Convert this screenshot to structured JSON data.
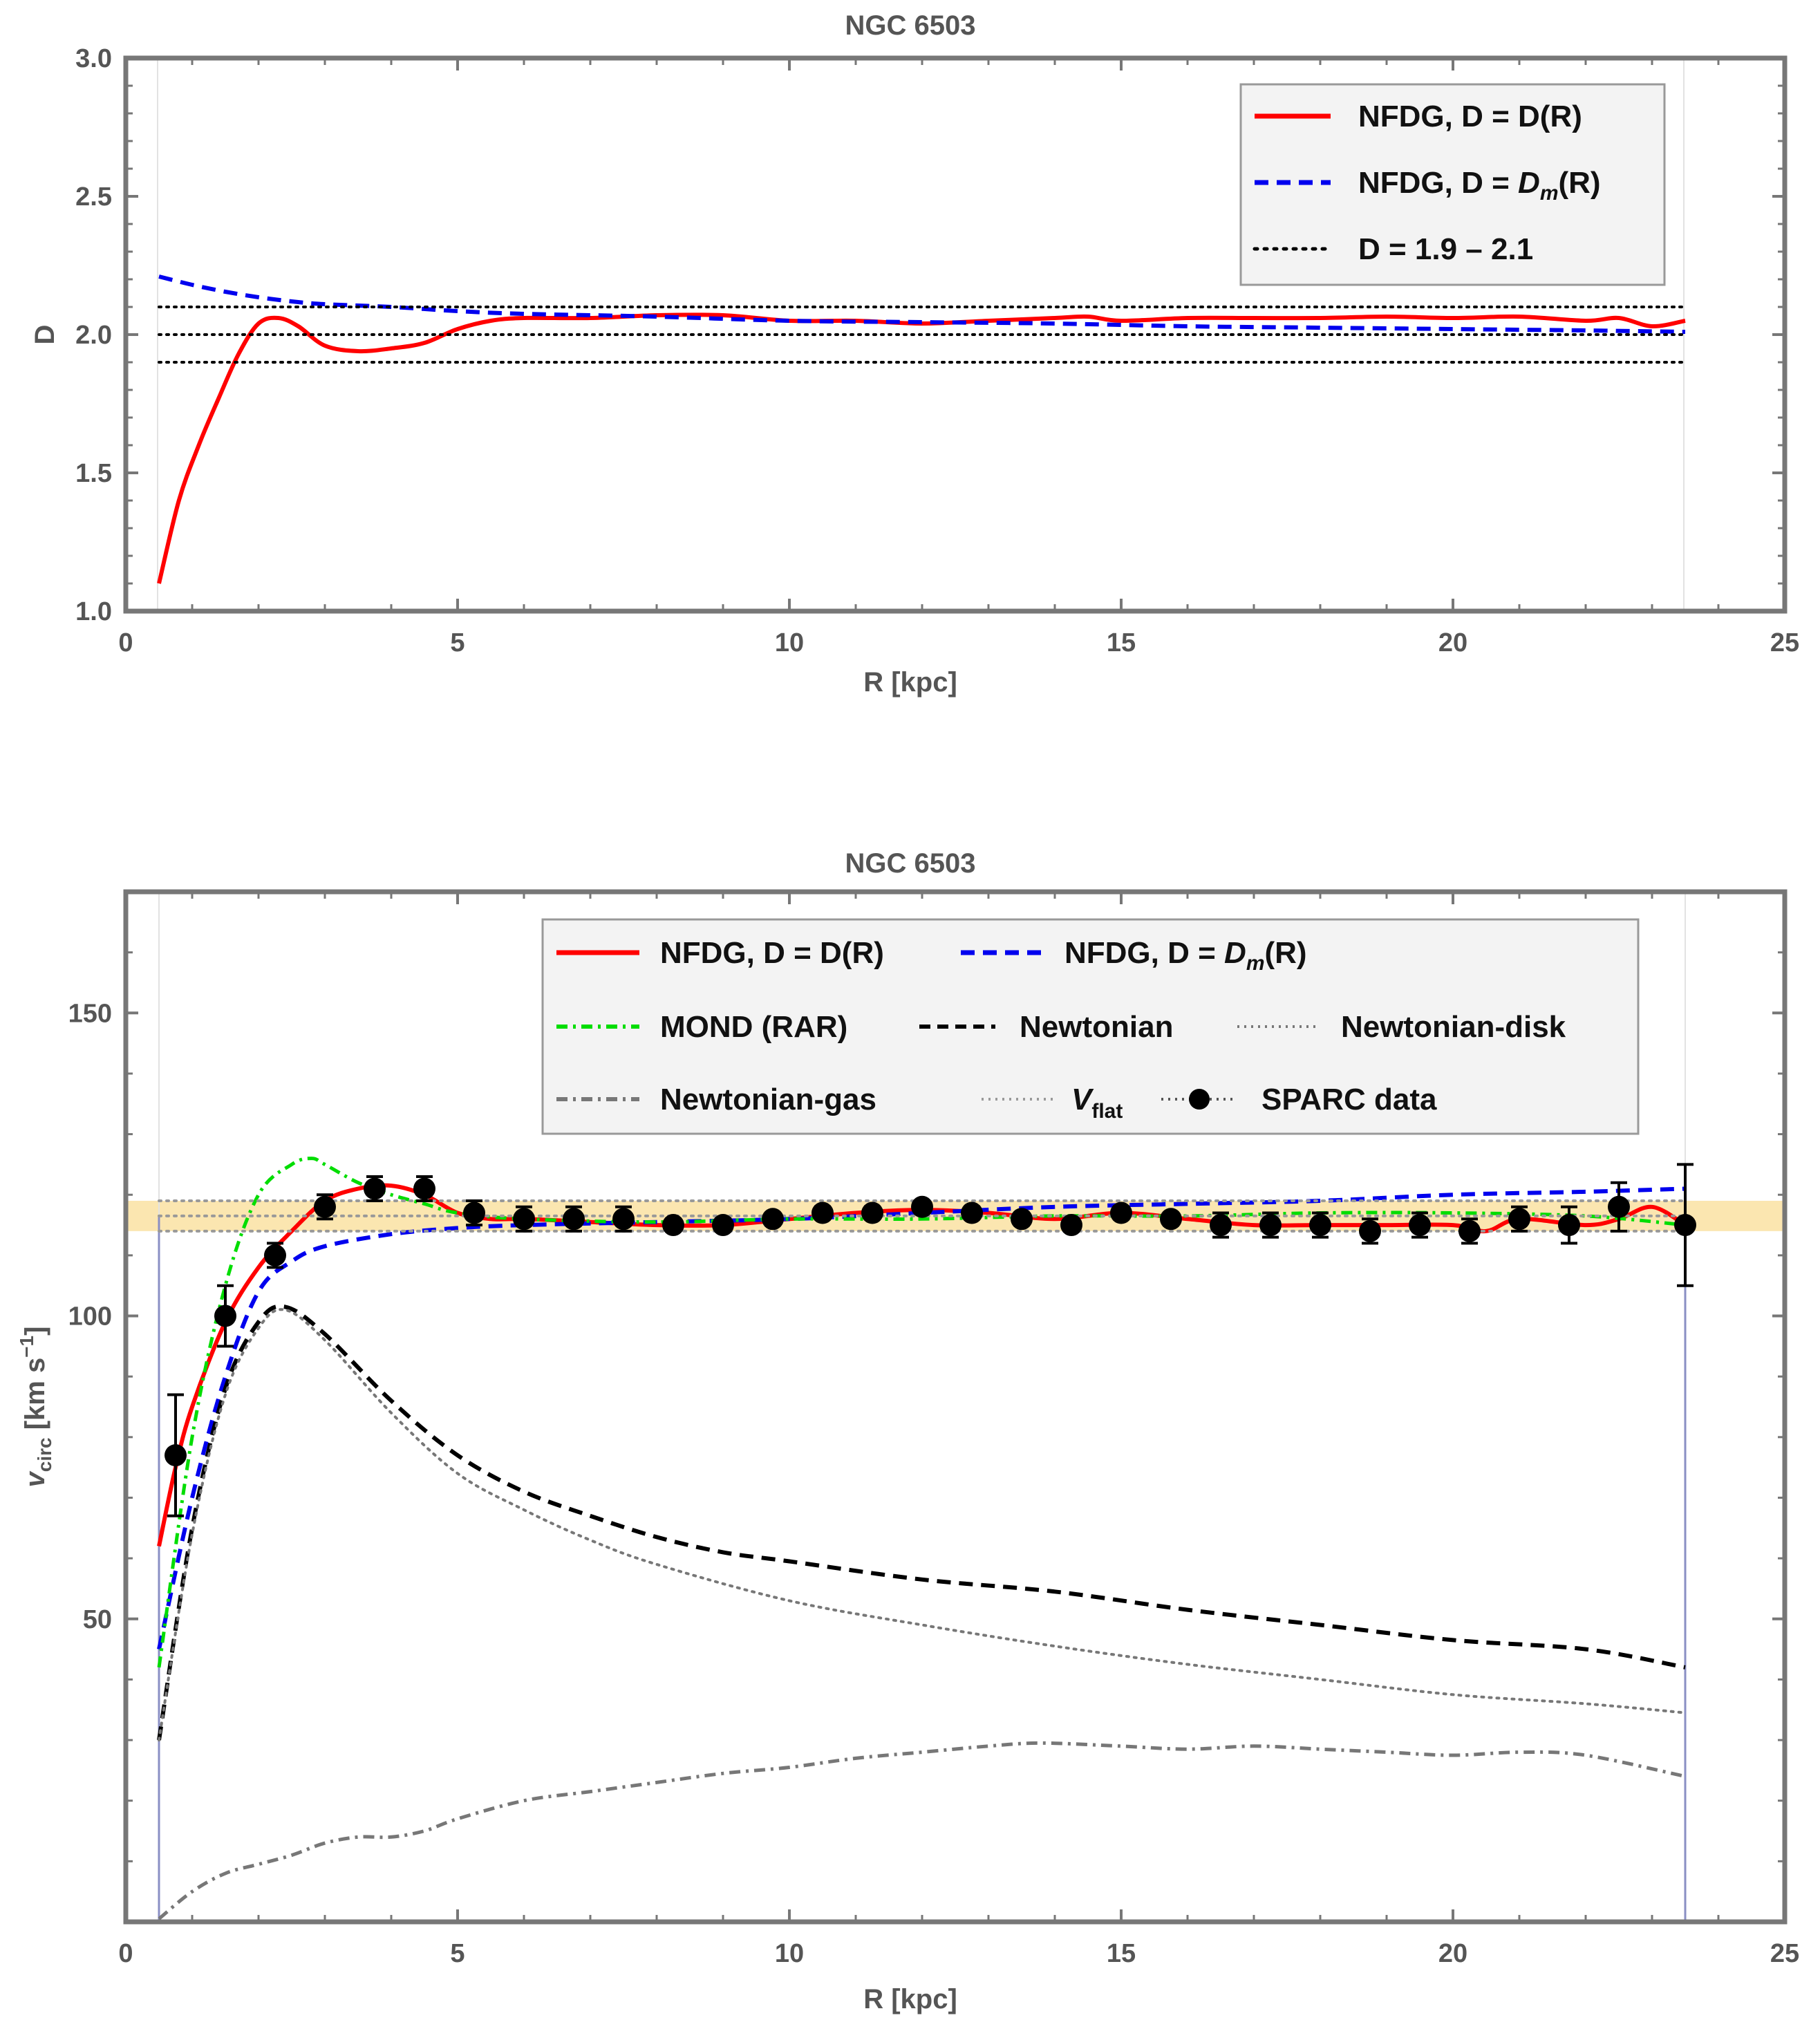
{
  "chart_data": [
    {
      "type": "line",
      "title": "NGC 6503",
      "xlabel": "R [kpc]",
      "ylabel": "D",
      "xlim": [
        0,
        25
      ],
      "ylim": [
        1.0,
        3.0
      ],
      "xticks": [
        "0",
        "5",
        "10",
        "15",
        "20",
        "25"
      ],
      "yticks": [
        "1.0",
        "1.5",
        "2.0",
        "2.5",
        "3.0"
      ],
      "legend_position": "top-right",
      "series": [
        {
          "name": "NFDG, D = D(R)",
          "color": "#ff0000",
          "style": "solid",
          "x": [
            0.5,
            0.8,
            1.1,
            1.4,
            1.7,
            2.0,
            2.3,
            2.6,
            3.0,
            3.5,
            4.0,
            4.5,
            5.0,
            5.5,
            6.0,
            7.0,
            8.0,
            9.0,
            10.0,
            11.0,
            12.0,
            13.0,
            14.0,
            14.5,
            15.0,
            16.0,
            17.0,
            18.0,
            19.0,
            20.0,
            21.0,
            22.0,
            22.5,
            23.0,
            23.5
          ],
          "values": [
            1.1,
            1.4,
            1.6,
            1.77,
            1.93,
            2.04,
            2.06,
            2.03,
            1.96,
            1.94,
            1.95,
            1.97,
            2.02,
            2.05,
            2.06,
            2.06,
            2.07,
            2.07,
            2.05,
            2.05,
            2.04,
            2.05,
            2.06,
            2.065,
            2.05,
            2.06,
            2.06,
            2.06,
            2.065,
            2.06,
            2.065,
            2.05,
            2.06,
            2.03,
            2.05
          ]
        },
        {
          "name": "NFDG, D = D_m(R)",
          "color": "#0000ee",
          "style": "dashed",
          "x": [
            0.5,
            1.0,
            1.5,
            2.0,
            2.5,
            3.0,
            4.0,
            5.0,
            6.0,
            8.0,
            10.0,
            12.0,
            14.0,
            16.0,
            18.0,
            20.0,
            22.0,
            23.5
          ],
          "values": [
            2.21,
            2.18,
            2.155,
            2.135,
            2.12,
            2.11,
            2.1,
            2.085,
            2.075,
            2.065,
            2.05,
            2.045,
            2.04,
            2.03,
            2.025,
            2.02,
            2.015,
            2.01
          ]
        },
        {
          "name": "D = 1.9 – 2.1",
          "color": "#000000",
          "style": "dotted",
          "hlines": [
            1.9,
            2.0,
            2.1
          ],
          "x_range": [
            0.5,
            23.5
          ]
        }
      ],
      "legend": [
        {
          "label": "NFDG, D = D(R)",
          "color": "#ff0000",
          "style": "solid"
        },
        {
          "label_prefix": "NFDG, D = ",
          "label_italic": "D",
          "label_subscript": "m",
          "label_suffix": "(R)",
          "color": "#0000ee",
          "style": "dashed"
        },
        {
          "label": "D = 1.9 – 2.1",
          "color": "#000000",
          "style": "dotted"
        }
      ]
    },
    {
      "type": "line",
      "title": "NGC 6503",
      "xlabel": "R [kpc]",
      "ylabel": "v_circ [km s^-1]",
      "ylabel_main": "v",
      "ylabel_sub": "circ",
      "ylabel_units": " [km s",
      "ylabel_sup": "−1",
      "ylabel_end": "]",
      "xlim": [
        0,
        25
      ],
      "ylim": [
        0,
        170
      ],
      "xticks": [
        "0",
        "5",
        "10",
        "15",
        "20",
        "25"
      ],
      "yticks": [
        "50",
        "100",
        "150"
      ],
      "legend_position": "top",
      "vflat_band": {
        "low": 114,
        "high": 119,
        "center": 116.5,
        "color": "#fbe6b0"
      },
      "vertical_lines": [
        0.5,
        23.5
      ],
      "series": [
        {
          "name": "NFDG, D = D(R)",
          "color": "#ff0000",
          "style": "solid",
          "x": [
            0.5,
            0.75,
            1.0,
            1.5,
            2.0,
            2.5,
            3.0,
            3.5,
            4.0,
            4.5,
            5.0,
            5.5,
            6.0,
            7.0,
            8.0,
            9.0,
            10.0,
            11.0,
            12.0,
            13.0,
            14.0,
            15.0,
            16.0,
            17.0,
            18.0,
            19.0,
            20.0,
            20.5,
            21.0,
            22.0,
            22.5,
            23.0,
            23.5
          ],
          "values": [
            62,
            75,
            85,
            99,
            108,
            114,
            119,
            121,
            121.5,
            120,
            117,
            116,
            116,
            115.5,
            115,
            115,
            116,
            117,
            117.5,
            117,
            116,
            117,
            116,
            115,
            115,
            115,
            115,
            114,
            116,
            115,
            116,
            118,
            115
          ]
        },
        {
          "name": "NFDG, D = D_m(R)",
          "color": "#0000ee",
          "style": "dashed",
          "x": [
            0.5,
            1.0,
            1.5,
            2.0,
            2.5,
            3.0,
            4.0,
            5.0,
            6.0,
            8.0,
            10.0,
            12.0,
            14.0,
            16.0,
            18.0,
            20.0,
            22.0,
            23.5
          ],
          "values": [
            45,
            70,
            90,
            104,
            109,
            111.5,
            113.5,
            114.5,
            115,
            115.5,
            116,
            117,
            118,
            118.5,
            119,
            120,
            120.5,
            121
          ]
        },
        {
          "name": "MOND (RAR)",
          "color": "#00dd00",
          "style": "dashdot",
          "x": [
            0.5,
            1.0,
            1.5,
            2.0,
            2.5,
            2.8,
            3.0,
            3.5,
            4.0,
            4.5,
            5.0,
            6.0,
            8.0,
            10.0,
            12.0,
            14.0,
            16.0,
            18.0,
            20.0,
            22.0,
            23.5
          ],
          "values": [
            42,
            80,
            105,
            120,
            125,
            126,
            125,
            122,
            120,
            118.5,
            117,
            116,
            115.5,
            116,
            116,
            116.5,
            116.5,
            117,
            117,
            116.5,
            115
          ]
        },
        {
          "name": "Newtonian",
          "color": "#000000",
          "style": "dashed",
          "x": [
            0.5,
            1.0,
            1.5,
            2.0,
            2.4,
            3.0,
            4.0,
            5.0,
            6.0,
            7.0,
            8.0,
            9.0,
            10.0,
            12.0,
            14.0,
            16.0,
            18.0,
            20.0,
            22.0,
            23.5
          ],
          "values": [
            30,
            65,
            88,
            99,
            101.5,
            97,
            86,
            77,
            71,
            67,
            63.5,
            61,
            59.5,
            56.5,
            54.5,
            51.5,
            49,
            46.5,
            45,
            42
          ]
        },
        {
          "name": "Newtonian-disk",
          "color": "#777777",
          "style": "dotted",
          "x": [
            0.5,
            1.0,
            1.5,
            2.0,
            2.4,
            3.0,
            4.0,
            5.0,
            6.0,
            7.0,
            8.0,
            10.0,
            12.0,
            14.0,
            16.0,
            18.0,
            20.0,
            22.0,
            23.5
          ],
          "values": [
            30,
            64,
            87,
            98,
            101,
            96,
            84,
            74,
            68,
            63,
            59,
            53,
            49,
            45.5,
            42.5,
            40,
            37.5,
            36,
            34.5
          ]
        },
        {
          "name": "Newtonian-gas",
          "color": "#777777",
          "style": "dashdot",
          "x": [
            0.5,
            1.0,
            1.5,
            2.0,
            2.5,
            3.0,
            3.5,
            4.0,
            4.5,
            5.0,
            6.0,
            7.0,
            8.0,
            9.0,
            10.0,
            11.0,
            12.0,
            13.0,
            13.8,
            15.0,
            16.0,
            17.0,
            18.0,
            19.0,
            20.0,
            21.0,
            22.0,
            23.5
          ],
          "values": [
            0.5,
            5,
            8,
            9.5,
            11,
            13,
            14,
            14,
            15,
            17,
            20,
            21.5,
            23,
            24.5,
            25.5,
            27,
            28,
            29,
            29.5,
            29,
            28.5,
            29,
            28.5,
            28,
            27.5,
            28,
            27.5,
            24
          ]
        },
        {
          "name": "V_flat",
          "color": "#999999",
          "style": "dotted",
          "hlines": [
            114,
            116.5,
            119
          ],
          "x_range": [
            0.5,
            23.5
          ]
        },
        {
          "name": "SPARC data",
          "color": "#000000",
          "style": "markers",
          "x": [
            0.75,
            1.5,
            2.25,
            3.0,
            3.75,
            4.5,
            5.25,
            6.0,
            6.75,
            7.5,
            8.25,
            9.0,
            9.75,
            10.5,
            11.25,
            12.0,
            12.75,
            13.5,
            14.25,
            15.0,
            15.75,
            16.5,
            17.25,
            18.0,
            18.75,
            19.5,
            20.25,
            21.0,
            21.75,
            22.5,
            23.5
          ],
          "values": [
            77,
            100,
            110,
            118,
            121,
            121,
            117,
            116,
            116,
            116,
            115,
            115,
            116,
            117,
            117,
            118,
            117,
            116,
            115,
            117,
            116,
            115,
            115,
            115,
            114,
            115,
            114,
            116,
            115,
            118,
            115
          ],
          "errors": [
            10,
            5,
            2,
            2,
            2,
            2,
            2,
            2,
            2,
            2,
            1,
            1,
            1,
            1,
            1,
            1,
            1,
            1,
            1,
            1,
            1,
            2,
            2,
            2,
            2,
            2,
            2,
            2,
            3,
            4,
            10
          ]
        }
      ],
      "legend": [
        {
          "label": "NFDG, D = D(R)",
          "color": "#ff0000",
          "style": "solid"
        },
        {
          "label_prefix": "NFDG, D = ",
          "label_italic": "D",
          "label_subscript": "m",
          "label_suffix": "(R)",
          "color": "#0000ee",
          "style": "dashed"
        },
        {
          "label": "MOND (RAR)",
          "color": "#00dd00",
          "style": "dashdot"
        },
        {
          "label": "Newtonian",
          "color": "#000000",
          "style": "dashed"
        },
        {
          "label": "Newtonian-disk",
          "color": "#777777",
          "style": "dotted"
        },
        {
          "label": "Newtonian-gas",
          "color": "#777777",
          "style": "dashdot"
        },
        {
          "label_italic": "V",
          "label_subscript": "flat",
          "color": "#999999",
          "style": "dotted"
        },
        {
          "label": "SPARC data",
          "color": "#000000",
          "style": "markers"
        }
      ]
    }
  ]
}
